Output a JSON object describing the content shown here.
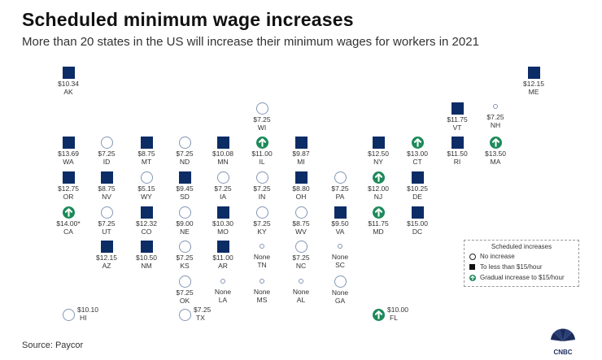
{
  "title": "Scheduled minimum wage increases",
  "subtitle": "More than 20 states in the US will increase their minimum wages for workers in 2021",
  "states": [
    {
      "abbr": "AK",
      "wage": "$10.34",
      "type": "square"
    },
    {
      "abbr": "ME",
      "wage": "$12.15",
      "type": "square"
    },
    {
      "abbr": "WI",
      "wage": "$7.25",
      "type": "none"
    },
    {
      "abbr": "VT",
      "wage": "$11.75",
      "type": "square"
    },
    {
      "abbr": "NH",
      "wage": "$7.25",
      "type": "dot"
    },
    {
      "abbr": "WA",
      "wage": "$13.69",
      "type": "square"
    },
    {
      "abbr": "ID",
      "wage": "$7.25",
      "type": "none"
    },
    {
      "abbr": "MT",
      "wage": "$8.75",
      "type": "square"
    },
    {
      "abbr": "ND",
      "wage": "$7.25",
      "type": "none"
    },
    {
      "abbr": "MN",
      "wage": "$10.08",
      "type": "square"
    },
    {
      "abbr": "IL",
      "wage": "$11.00",
      "type": "arrow"
    },
    {
      "abbr": "MI",
      "wage": "$9.87",
      "type": "square"
    },
    {
      "abbr": "NY",
      "wage": "$12.50",
      "type": "square"
    },
    {
      "abbr": "CT",
      "wage": "$13.00",
      "type": "arrow"
    },
    {
      "abbr": "RI",
      "wage": "$11.50",
      "type": "square"
    },
    {
      "abbr": "MA",
      "wage": "$13.50",
      "type": "arrow"
    },
    {
      "abbr": "OR",
      "wage": "$12.75",
      "type": "square"
    },
    {
      "abbr": "NV",
      "wage": "$8.75",
      "type": "square"
    },
    {
      "abbr": "WY",
      "wage": "$5.15",
      "type": "none"
    },
    {
      "abbr": "SD",
      "wage": "$9.45",
      "type": "square"
    },
    {
      "abbr": "IA",
      "wage": "$7.25",
      "type": "none"
    },
    {
      "abbr": "IN",
      "wage": "$7.25",
      "type": "none"
    },
    {
      "abbr": "OH",
      "wage": "$8.80",
      "type": "square"
    },
    {
      "abbr": "PA",
      "wage": "$7.25",
      "type": "none"
    },
    {
      "abbr": "NJ",
      "wage": "$12.00",
      "type": "arrow"
    },
    {
      "abbr": "DE",
      "wage": "$10.25",
      "type": "square"
    },
    {
      "abbr": "CA",
      "wage": "$14.00*",
      "type": "arrow"
    },
    {
      "abbr": "UT",
      "wage": "$7.25",
      "type": "none"
    },
    {
      "abbr": "CO",
      "wage": "$12.32",
      "type": "square"
    },
    {
      "abbr": "NE",
      "wage": "$9.00",
      "type": "none"
    },
    {
      "abbr": "MO",
      "wage": "$10.30",
      "type": "square"
    },
    {
      "abbr": "KY",
      "wage": "$7.25",
      "type": "none"
    },
    {
      "abbr": "WV",
      "wage": "$8.75",
      "type": "none"
    },
    {
      "abbr": "VA",
      "wage": "$9.50",
      "type": "square"
    },
    {
      "abbr": "MD",
      "wage": "$11.75",
      "type": "arrow"
    },
    {
      "abbr": "DC",
      "wage": "$15.00",
      "type": "square"
    },
    {
      "abbr": "AZ",
      "wage": "$12.15",
      "type": "square"
    },
    {
      "abbr": "NM",
      "wage": "$10.50",
      "type": "square"
    },
    {
      "abbr": "KS",
      "wage": "$7.25",
      "type": "none"
    },
    {
      "abbr": "AR",
      "wage": "$11.00",
      "type": "square"
    },
    {
      "abbr": "TN",
      "wage": "None",
      "type": "dot"
    },
    {
      "abbr": "NC",
      "wage": "$7.25",
      "type": "none"
    },
    {
      "abbr": "SC",
      "wage": "None",
      "type": "dot"
    },
    {
      "abbr": "OK",
      "wage": "$7.25",
      "type": "none"
    },
    {
      "abbr": "LA",
      "wage": "None",
      "type": "dot"
    },
    {
      "abbr": "MS",
      "wage": "None",
      "type": "dot"
    },
    {
      "abbr": "AL",
      "wage": "None",
      "type": "dot"
    },
    {
      "abbr": "GA",
      "wage": "None",
      "type": "none"
    },
    {
      "abbr": "HI",
      "wage": "$10.10",
      "type": "none",
      "label_side": true
    },
    {
      "abbr": "TX",
      "wage": "$7.25",
      "type": "none",
      "label_side": true
    },
    {
      "abbr": "FL",
      "wage": "$10.00",
      "type": "arrow",
      "label_side": true
    }
  ],
  "legend": {
    "title": "Scheduled increases",
    "items": [
      {
        "type": "none",
        "label": "No increase"
      },
      {
        "type": "square",
        "label": "To less than $15/hour"
      },
      {
        "type": "arrow",
        "label": "Gradual increase to $15/hour"
      }
    ]
  },
  "source": "Source: Paycor",
  "logo_text": "CNBC",
  "colors": {
    "square": "#0c2c66",
    "arrow": "#1d8a5a",
    "circle": "#8496b4"
  }
}
